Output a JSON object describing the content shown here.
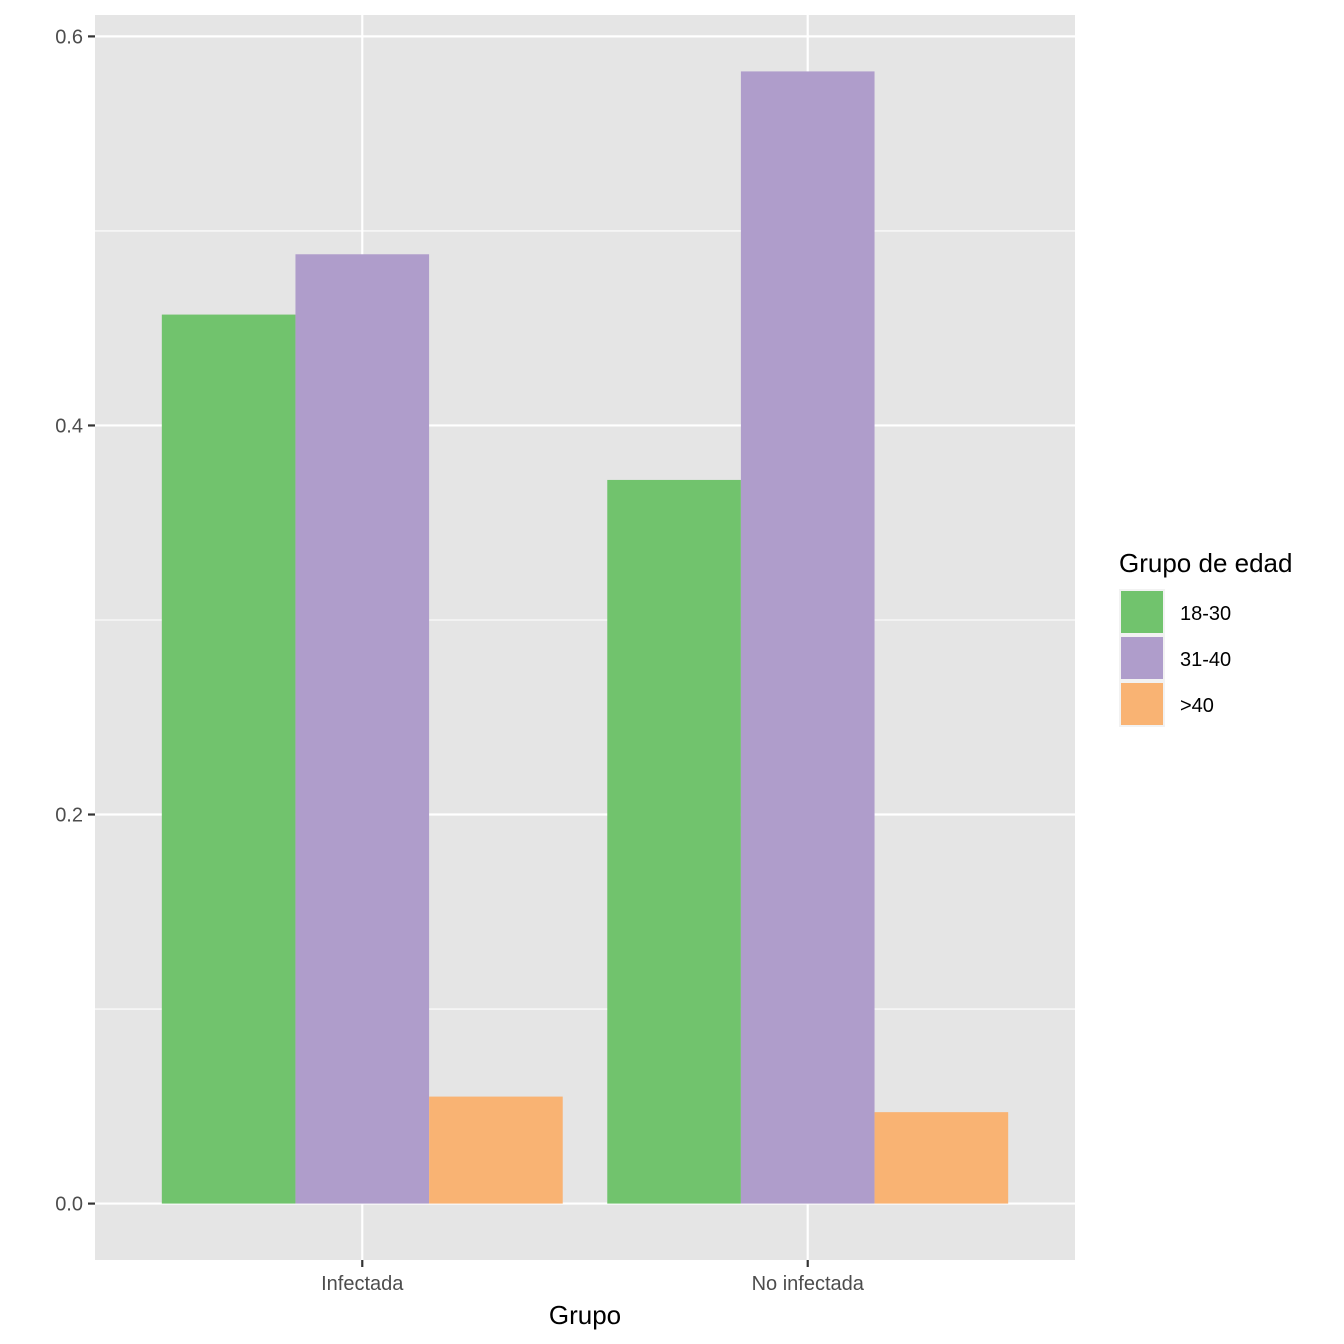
{
  "chart_data": {
    "type": "bar",
    "title": "",
    "xlabel": "Grupo",
    "ylabel": "",
    "categories": [
      "Infectada",
      "No infectada"
    ],
    "series": [
      {
        "name": "18-30",
        "values": [
          0.457,
          0.372
        ]
      },
      {
        "name": "31-40",
        "values": [
          0.488,
          0.582
        ]
      },
      {
        "name": ">40",
        "values": [
          0.055,
          0.047
        ]
      }
    ],
    "ylim": [
      -0.029,
      0.611
    ],
    "yticks": [
      0.0,
      0.2,
      0.4,
      0.6
    ],
    "ytick_labels": [
      "0.0",
      "0.2",
      "0.4",
      "0.6"
    ],
    "grid": true,
    "legend": {
      "title": "Grupo de edad",
      "position": "right"
    },
    "colors": {
      "18-30": "#71c36d",
      "31-40": "#af9dcb",
      ">40": "#f9b373",
      "panel": "#e5e5e5",
      "grid": "#ffffff",
      "text": "#4d4d4d",
      "axis_title": "#000000"
    }
  }
}
